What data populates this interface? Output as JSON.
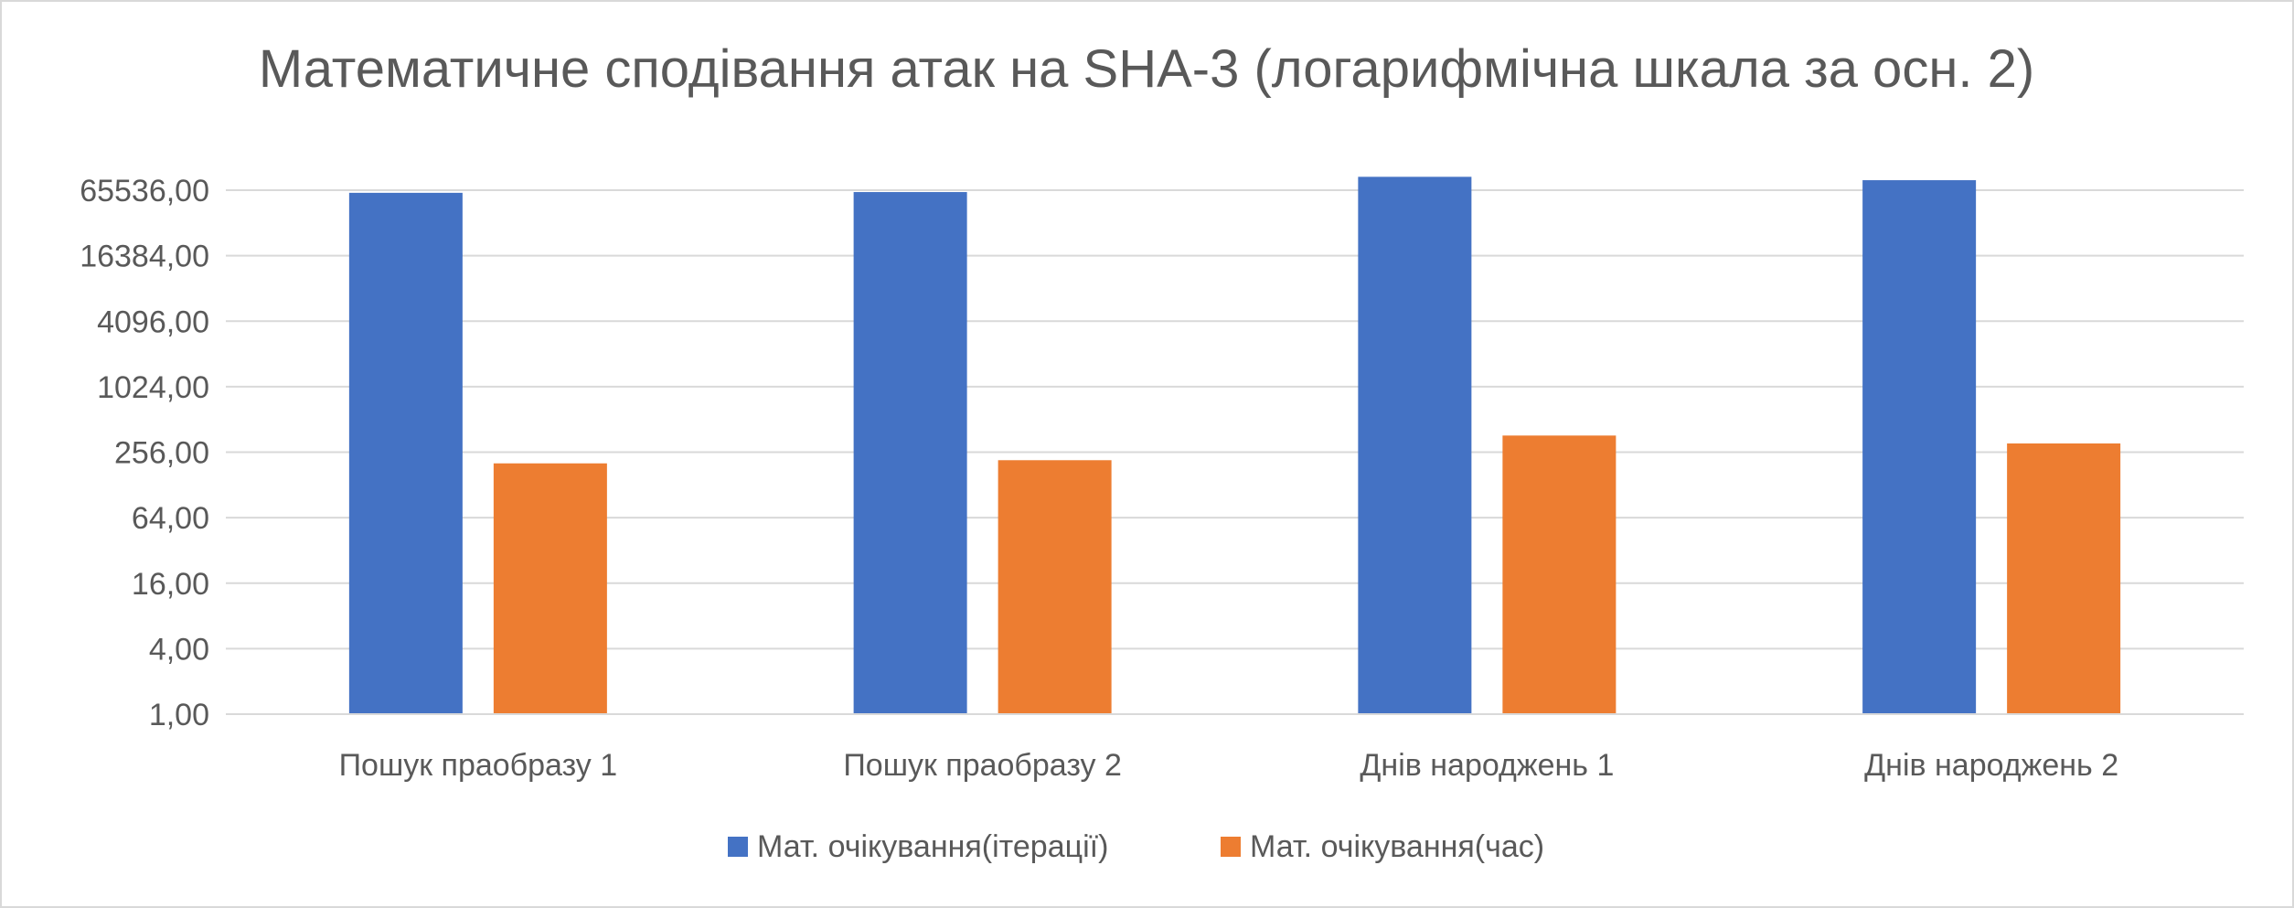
{
  "chart_data": {
    "type": "bar",
    "title": "Математичне сподівання атак на SHA-3 (логарифмічна шкала за осн. 2)",
    "xlabel": "",
    "ylabel": "",
    "y_scale": "log2",
    "ylim": [
      1,
      65536
    ],
    "y_ticks": [
      1,
      4,
      16,
      64,
      256,
      1024,
      4096,
      16384,
      65536
    ],
    "y_tick_labels": [
      "1,00",
      "4,00",
      "16,00",
      "64,00",
      "256,00",
      "1024,00",
      "4096,00",
      "16384,00",
      "65536,00"
    ],
    "categories": [
      "Пошук праобразу 1",
      "Пошук праобразу 2",
      "Днів народжень 1",
      "Днів народжень 2"
    ],
    "series": [
      {
        "name": "Мат. очікування(ітерації)",
        "color": "#4472C4",
        "values": [
          62000,
          63000,
          87000,
          81000
        ]
      },
      {
        "name": "Мат. очікування(час)",
        "color": "#ED7D31",
        "values": [
          202,
          216,
          364,
          308
        ]
      }
    ],
    "grid": true,
    "legend_position": "bottom"
  }
}
